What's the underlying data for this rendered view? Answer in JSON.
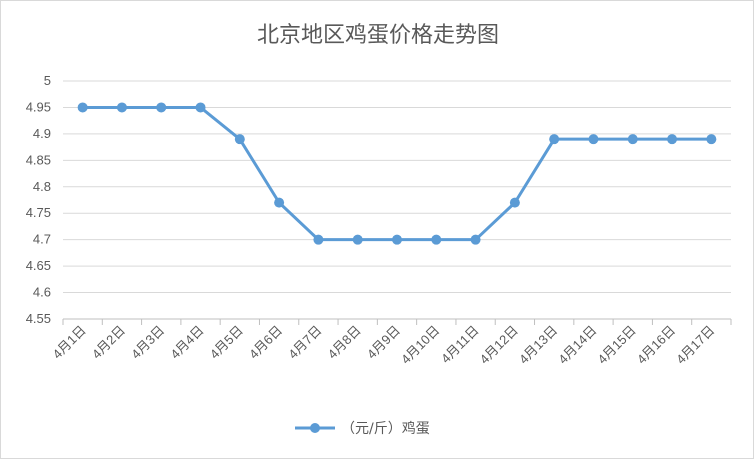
{
  "chart_data": {
    "type": "line",
    "title": "北京地区鸡蛋价格走势图",
    "xlabel": "",
    "ylabel": "",
    "categories": [
      "4月1日",
      "4月2日",
      "4月3日",
      "4月4日",
      "4月5日",
      "4月6日",
      "4月7日",
      "4月8日",
      "4月9日",
      "4月10日",
      "4月11日",
      "4月12日",
      "4月13日",
      "4月14日",
      "4月15日",
      "4月16日",
      "4月17日"
    ],
    "series": [
      {
        "name": "（元/斤）鸡蛋",
        "values": [
          4.95,
          4.95,
          4.95,
          4.95,
          4.89,
          4.77,
          4.7,
          4.7,
          4.7,
          4.7,
          4.7,
          4.77,
          4.89,
          4.89,
          4.89,
          4.89,
          4.89
        ]
      }
    ],
    "ylim": [
      4.55,
      5
    ],
    "yticks": [
      "4.55",
      "4.6",
      "4.65",
      "4.7",
      "4.75",
      "4.8",
      "4.85",
      "4.9",
      "4.95",
      "5"
    ],
    "grid": true,
    "legend": "bottom",
    "colors": {
      "line": "#5b9bd5",
      "grid": "#d9d9d9",
      "text": "#595959"
    }
  }
}
